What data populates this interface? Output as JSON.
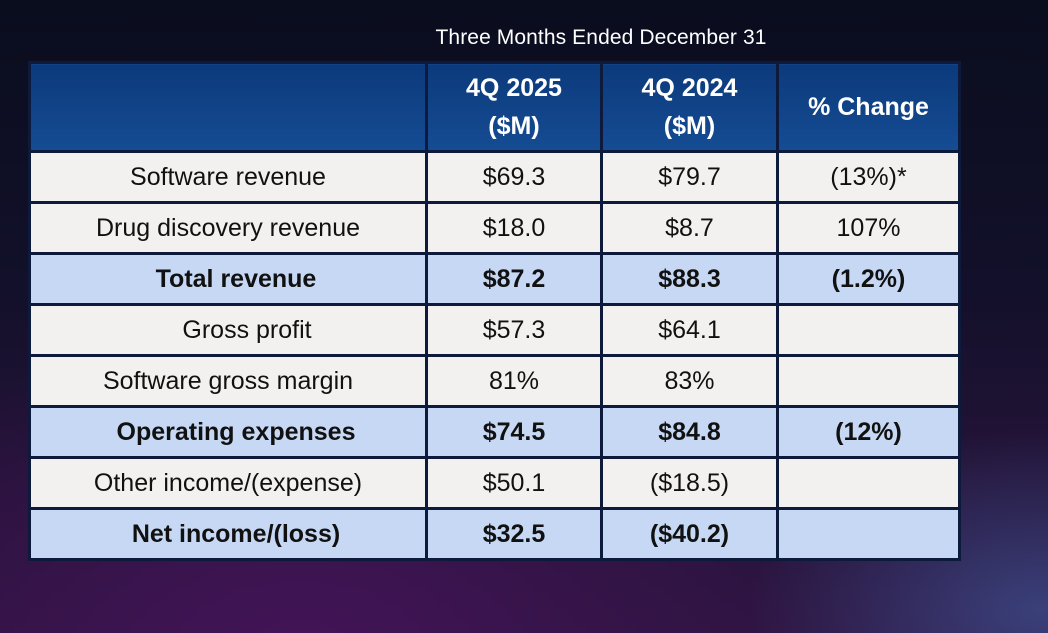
{
  "caption": "Three Months Ended December 31",
  "columns": [
    {
      "line1": "4Q 2025",
      "line2": "($M)"
    },
    {
      "line1": "4Q 2024",
      "line2": "($M)"
    },
    {
      "line1": "% Change",
      "line2": ""
    }
  ],
  "rows": [
    {
      "label": "Software revenue",
      "q4_2025": "$69.3",
      "q4_2024": "$79.7",
      "change": "(13%)*",
      "bold": false
    },
    {
      "label": "Drug discovery revenue",
      "q4_2025": "$18.0",
      "q4_2024": "$8.7",
      "change": "107%",
      "bold": false
    },
    {
      "label": "Total revenue",
      "q4_2025": "$87.2",
      "q4_2024": "$88.3",
      "change": "(1.2%)",
      "bold": true
    },
    {
      "label": "Gross profit",
      "q4_2025": "$57.3",
      "q4_2024": "$64.1",
      "change": "",
      "bold": false
    },
    {
      "label": "Software gross margin",
      "q4_2025": "81%",
      "q4_2024": "83%",
      "change": "",
      "bold": false
    },
    {
      "label": "Operating expenses",
      "q4_2025": "$74.5",
      "q4_2024": "$84.8",
      "change": "(12%)",
      "bold": true
    },
    {
      "label": "Other income/(expense)",
      "q4_2025": "$50.1",
      "q4_2024": "($18.5)",
      "change": "",
      "bold": false
    },
    {
      "label": "Net income/(loss)",
      "q4_2025": "$32.5",
      "q4_2024": "($40.2)",
      "change": "",
      "bold": true
    }
  ]
}
